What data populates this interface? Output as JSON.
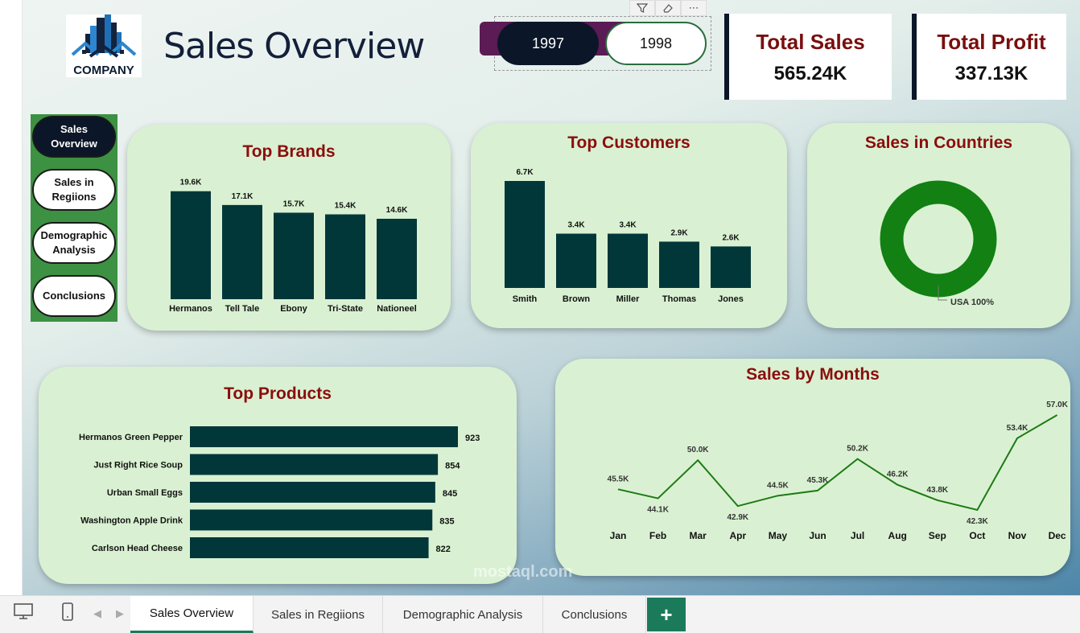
{
  "header": {
    "logo_text": "COMPANY",
    "page_title": "Sales Overview"
  },
  "year_slicer": {
    "options": [
      "1997",
      "1998"
    ],
    "selected": "1997"
  },
  "kpis": [
    {
      "title": "Total Sales",
      "value": "565.24K"
    },
    {
      "title": "Total Profit",
      "value": "337.13K"
    }
  ],
  "nav": {
    "items": [
      {
        "label_line1": "Sales",
        "label_line2": "Overview",
        "active": true
      },
      {
        "label_line1": "Sales in",
        "label_line2": "Regiions",
        "active": false
      },
      {
        "label_line1": "Demographic",
        "label_line2": "Analysis",
        "active": false
      },
      {
        "label_line1": "Conclusions",
        "label_line2": "",
        "active": false
      }
    ]
  },
  "colors": {
    "bar": "#02373a",
    "line": "#1e7a15",
    "donut": "#128012",
    "title_red": "#8b0d0d",
    "card_bg": "#d9f1d2",
    "nav_green": "#3d9142"
  },
  "cards": {
    "top_brands_title": "Top  Brands",
    "top_customers_title": "Top Customers",
    "sales_countries_title": "Sales in Countries",
    "top_products_title": "Top Products",
    "sales_months_title": "Sales by Months"
  },
  "chart_data": [
    {
      "id": "top_brands",
      "type": "bar",
      "title": "Top  Brands",
      "categories": [
        "Hermanos",
        "Tell Tale",
        "Ebony",
        "Tri-State",
        "Nationeel"
      ],
      "values": [
        19.6,
        17.1,
        15.7,
        15.4,
        14.6
      ],
      "labels": [
        "19.6K",
        "17.1K",
        "15.7K",
        "15.4K",
        "14.6K"
      ],
      "ylim": [
        0,
        20
      ]
    },
    {
      "id": "top_customers",
      "type": "bar",
      "title": "Top Customers",
      "categories": [
        "Smith",
        "Brown",
        "Miller",
        "Thomas",
        "Jones"
      ],
      "values": [
        6.7,
        3.4,
        3.4,
        2.9,
        2.6
      ],
      "labels": [
        "6.7K",
        "3.4K",
        "3.4K",
        "2.9K",
        "2.6K"
      ],
      "ylim": [
        0,
        6.7
      ]
    },
    {
      "id": "sales_countries",
      "type": "pie",
      "title": "Sales in Countries",
      "categories": [
        "USA"
      ],
      "values": [
        100
      ],
      "labels": [
        "USA 100%"
      ]
    },
    {
      "id": "top_products",
      "type": "bar",
      "orientation": "horizontal",
      "title": "Top Products",
      "categories": [
        "Hermanos Green Pepper",
        "Just Right Rice Soup",
        "Urban Small Eggs",
        "Washington Apple Drink",
        "Carlson Head Cheese"
      ],
      "values": [
        923,
        854,
        845,
        835,
        822
      ],
      "labels": [
        "923",
        "854",
        "845",
        "835",
        "822"
      ],
      "xlim": [
        0,
        923
      ]
    },
    {
      "id": "sales_months",
      "type": "line",
      "title": "Sales by Months",
      "categories": [
        "Jan",
        "Feb",
        "Mar",
        "Apr",
        "May",
        "Jun",
        "Jul",
        "Aug",
        "Sep",
        "Oct",
        "Nov",
        "Dec"
      ],
      "values": [
        45.5,
        44.1,
        50.0,
        42.9,
        44.5,
        45.3,
        50.2,
        46.2,
        43.8,
        42.3,
        53.4,
        57.0
      ],
      "labels": [
        "45.5K",
        "44.1K",
        "50.0K",
        "42.9K",
        "44.5K",
        "45.3K",
        "50.2K",
        "46.2K",
        "43.8K",
        "42.3K",
        "53.4K",
        "57.0K"
      ],
      "ylim": [
        42.3,
        57.0
      ]
    }
  ],
  "tabs": [
    {
      "label": "Sales Overview",
      "active": true
    },
    {
      "label": "Sales in Regiions",
      "active": false
    },
    {
      "label": "Demographic Analysis",
      "active": false
    },
    {
      "label": "Conclusions",
      "active": false
    }
  ],
  "add_tab_label": "+",
  "watermark": "mostaql.com"
}
